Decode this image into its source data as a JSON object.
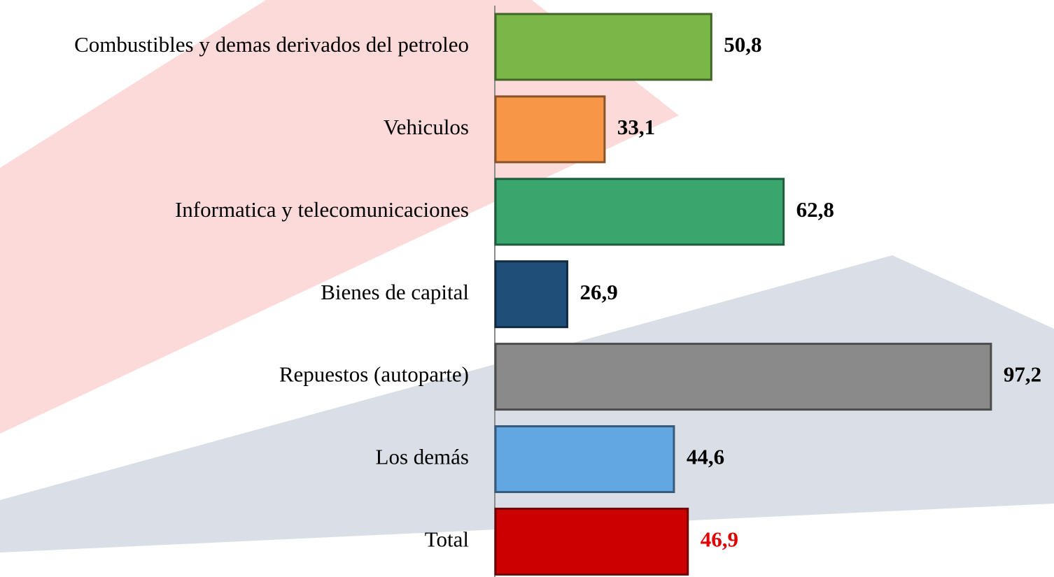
{
  "chart_data": {
    "type": "barh",
    "categories": [
      "Combustibles y demas derivados del petroleo",
      "Vehiculos",
      "Informatica y telecomunicaciones",
      "Bienes de capital",
      "Repuestos (autoparte)",
      "Los demás",
      "Total"
    ],
    "values": [
      50.8,
      33.1,
      62.8,
      26.9,
      97.2,
      44.6,
      46.9
    ],
    "value_labels": [
      "50,8",
      "33,1",
      "62,8",
      "26,9",
      "97,2",
      "44,6",
      "46,9"
    ],
    "colors": [
      "#7ab648",
      "#f79646",
      "#3aa66e",
      "#1f4e79",
      "#8a8a8a",
      "#62a6e2",
      "#cc0000"
    ],
    "label_colors": [
      "#000000",
      "#000000",
      "#000000",
      "#000000",
      "#000000",
      "#000000",
      "#e00000"
    ],
    "xlim": [
      15,
      100
    ]
  }
}
